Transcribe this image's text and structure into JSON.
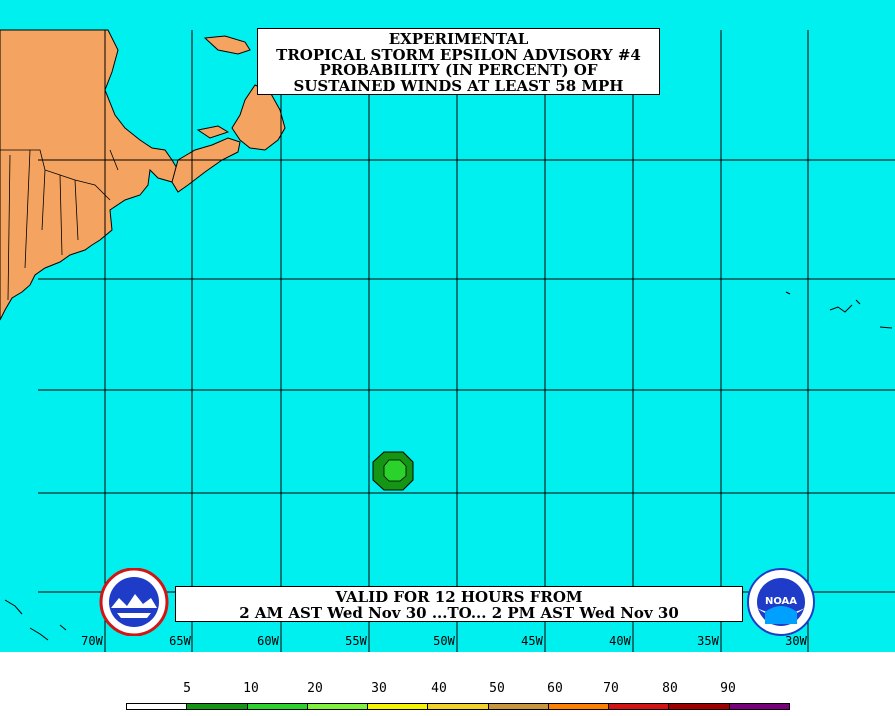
{
  "title": {
    "line1": "EXPERIMENTAL",
    "line2": "TROPICAL STORM EPSILON ADVISORY #4",
    "line3": "PROBABILITY (IN PERCENT) OF",
    "line4": "SUSTAINED WINDS AT LEAST 58 MPH"
  },
  "valid": {
    "line1": "VALID FOR 12 HOURS FROM",
    "line2": "2 AM AST Wed Nov 30 ...TO... 2 PM AST Wed Nov 30"
  },
  "longitude_labels": [
    "70W",
    "65W",
    "60W",
    "55W",
    "50W",
    "45W",
    "40W",
    "35W",
    "30W"
  ],
  "legend": {
    "labels": [
      "5",
      "10",
      "20",
      "30",
      "40",
      "50",
      "60",
      "70",
      "80",
      "90"
    ],
    "colors": [
      "#ffffff",
      "#149614",
      "#2bd22b",
      "#7ff03c",
      "#f4f400",
      "#f0d228",
      "#c8963c",
      "#ff8000",
      "#d21414",
      "#a00000",
      "#780078"
    ]
  },
  "colors": {
    "ocean": "#00f0f0",
    "land": "#f4a460",
    "grid": "#000000",
    "prob_5_10": "#149614",
    "prob_10_20": "#2bd22b"
  },
  "logos": {
    "left_icon": "national-weather-service-logo",
    "right_icon": "noaa-logo",
    "right_text": "NOAA"
  }
}
